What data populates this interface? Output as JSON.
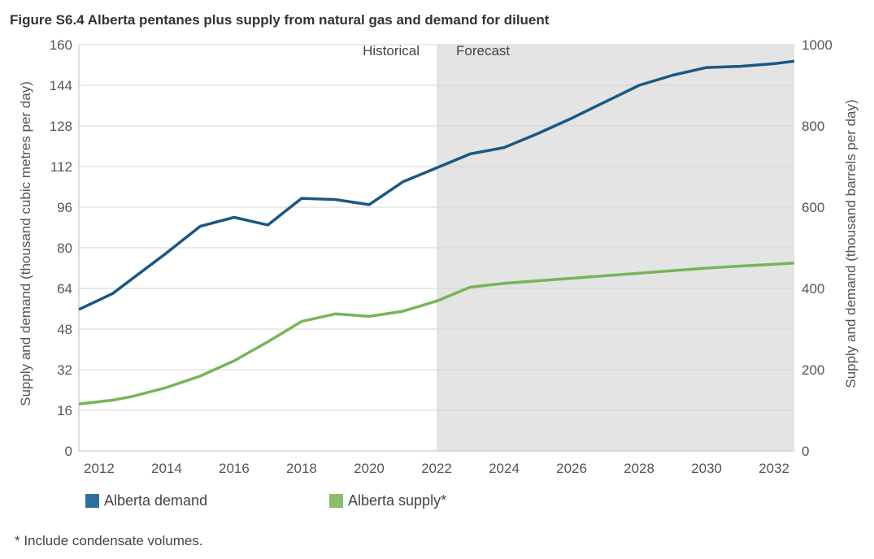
{
  "title": "Figure S6.4  Alberta pentanes plus supply from natural gas and demand for diluent",
  "footnote": "* Include condensate volumes.",
  "colors": {
    "demand": "#1b5784",
    "supply": "#79b35a",
    "demand_legend": "#2e6f9b",
    "supply_legend": "#8abe6c",
    "forecast_shade": "#e4e4e4",
    "grid": "#d6d6d6"
  },
  "chart_data": {
    "type": "line",
    "regions": {
      "historical_label": "Historical",
      "forecast_label": "Forecast",
      "forecast_start": 2022
    },
    "x_ticks": [
      "2012",
      "2014",
      "2016",
      "2018",
      "2020",
      "2022",
      "2024",
      "2026",
      "2028",
      "2030",
      "2032"
    ],
    "xlim": [
      2011.4,
      2032.6
    ],
    "ylim_left": [
      0,
      160
    ],
    "y_ticks_left": [
      "0",
      "16",
      "32",
      "48",
      "64",
      "80",
      "96",
      "112",
      "128",
      "144",
      "160"
    ],
    "ylabel_left": "Supply and demand (thousand cubic metres per day)",
    "ylim_right": [
      0,
      1000
    ],
    "y_ticks_right": [
      "0",
      "200",
      "400",
      "600",
      "800",
      "1000"
    ],
    "ylabel_right": "Supply and demand (thousand barrels per day)",
    "grid": true,
    "legend_position": "bottom",
    "series": [
      {
        "name": "Alberta demand",
        "color_key": "demand",
        "x": [
          2011.4,
          2012.4,
          2013,
          2014,
          2015,
          2016,
          2017,
          2018,
          2019,
          2020,
          2021,
          2022,
          2023,
          2024,
          2025,
          2026,
          2027,
          2028,
          2029,
          2030,
          2031,
          2032,
          2032.6
        ],
        "values": [
          55.7,
          62,
          68,
          78,
          88.5,
          92,
          89,
          99.5,
          99,
          97,
          106,
          111.5,
          117,
          119.5,
          125,
          131,
          137.5,
          144,
          148,
          151,
          151.5,
          152.5,
          153.5
        ]
      },
      {
        "name": "Alberta supply*",
        "color_key": "supply",
        "x": [
          2011.4,
          2012.4,
          2013,
          2014,
          2015,
          2016,
          2017,
          2018,
          2019,
          2020,
          2021,
          2022,
          2023,
          2024,
          2025,
          2026,
          2027,
          2028,
          2029,
          2030,
          2031,
          2032,
          2032.6
        ],
        "values": [
          18.5,
          20,
          21.5,
          25,
          29.5,
          35.5,
          43,
          51,
          54,
          53,
          55,
          59,
          64.5,
          66,
          67,
          68,
          69,
          70,
          71,
          72,
          72.8,
          73.5,
          74
        ]
      }
    ]
  }
}
